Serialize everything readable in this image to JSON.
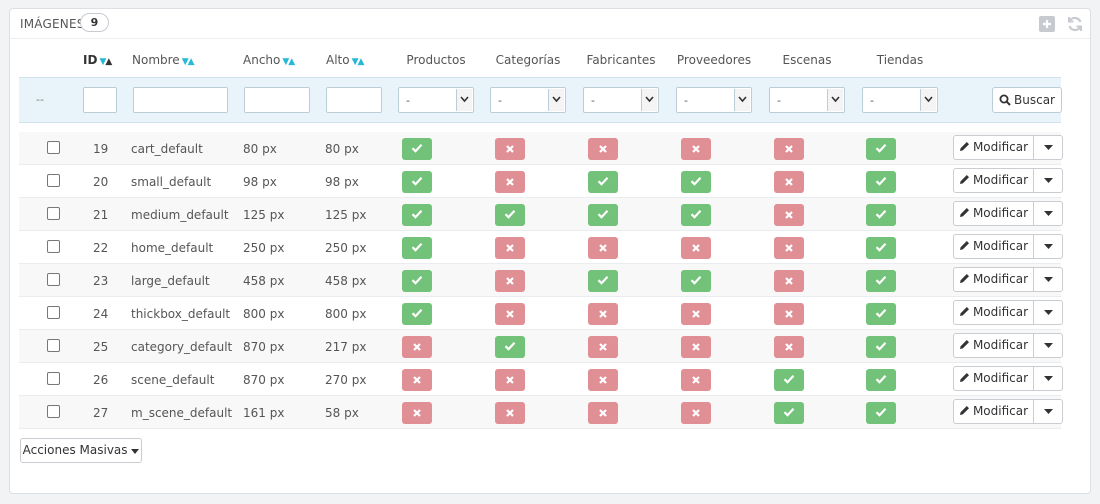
{
  "panel": {
    "title": "Imágenes",
    "count": "9"
  },
  "columns": {
    "id": "ID",
    "nombre": "Nombre",
    "ancho": "Ancho",
    "alto": "Alto",
    "productos": "Productos",
    "categorias": "Categorías",
    "fabricantes": "Fabricantes",
    "proveedores": "Proveedores",
    "escenas": "Escenas",
    "tiendas": "Tiendas"
  },
  "filters": {
    "dash": "--",
    "select_value": "-",
    "search_label": "Buscar"
  },
  "row_actions": {
    "edit_label": "Modificar"
  },
  "bulk_label": "Acciones Masivas",
  "colors": {
    "yes": "#72c279",
    "no": "#e08f95",
    "accent": "#25b9d7"
  },
  "rows": [
    {
      "id": "19",
      "name": "cart_default",
      "width": "80 px",
      "height": "80 px",
      "flags": [
        true,
        false,
        false,
        false,
        false,
        true
      ]
    },
    {
      "id": "20",
      "name": "small_default",
      "width": "98 px",
      "height": "98 px",
      "flags": [
        true,
        false,
        true,
        true,
        false,
        true
      ]
    },
    {
      "id": "21",
      "name": "medium_default",
      "width": "125 px",
      "height": "125 px",
      "flags": [
        true,
        true,
        true,
        true,
        false,
        true
      ]
    },
    {
      "id": "22",
      "name": "home_default",
      "width": "250 px",
      "height": "250 px",
      "flags": [
        true,
        false,
        false,
        false,
        false,
        true
      ]
    },
    {
      "id": "23",
      "name": "large_default",
      "width": "458 px",
      "height": "458 px",
      "flags": [
        true,
        false,
        true,
        true,
        false,
        true
      ]
    },
    {
      "id": "24",
      "name": "thickbox_default",
      "width": "800 px",
      "height": "800 px",
      "flags": [
        true,
        false,
        false,
        false,
        false,
        true
      ]
    },
    {
      "id": "25",
      "name": "category_default",
      "width": "870 px",
      "height": "217 px",
      "flags": [
        false,
        true,
        false,
        false,
        false,
        true
      ]
    },
    {
      "id": "26",
      "name": "scene_default",
      "width": "870 px",
      "height": "270 px",
      "flags": [
        false,
        false,
        false,
        false,
        true,
        true
      ]
    },
    {
      "id": "27",
      "name": "m_scene_default",
      "width": "161 px",
      "height": "58 px",
      "flags": [
        false,
        false,
        false,
        false,
        true,
        true
      ]
    }
  ]
}
